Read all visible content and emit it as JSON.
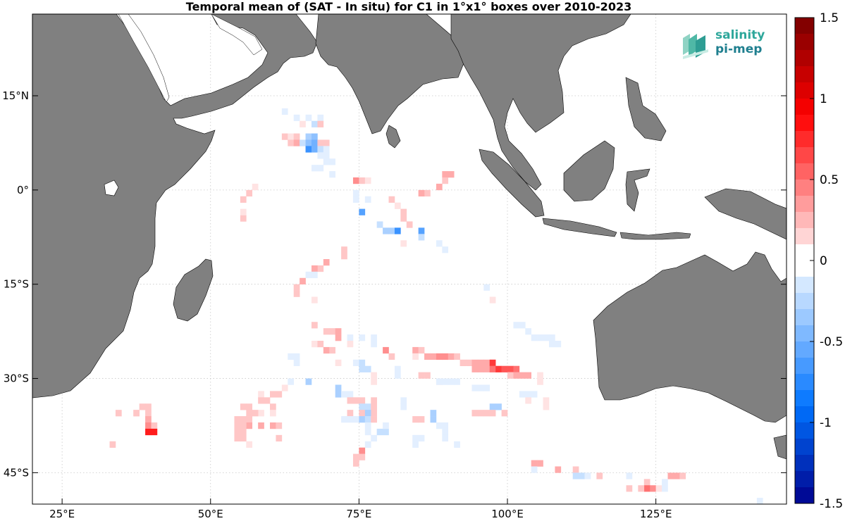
{
  "title": "Temporal mean of (SAT - In situ) for C1 in 1°x1° boxes over 2010-2023",
  "logo": {
    "line1": "salinity",
    "line2": "pi-mep",
    "icon": "salinity-waves-logo-icon"
  },
  "colors": {
    "land": "#808080",
    "grid": "#c8c8c8",
    "ocean": "#ffffff"
  },
  "chart_data": {
    "type": "heatmap",
    "title": "Temporal mean of (SAT - In situ) for C1 in 1°x1° boxes over 2010-2023",
    "x_range": [
      20,
      147
    ],
    "y_range": [
      -50,
      28
    ],
    "x_ticks": [
      25,
      50,
      75,
      100,
      125
    ],
    "x_tick_labels": [
      "25°E",
      "50°E",
      "75°E",
      "100°E",
      "125°E"
    ],
    "y_ticks": [
      15,
      0,
      -15,
      -30,
      -45
    ],
    "y_tick_labels": [
      "15°N",
      "0°",
      "15°S",
      "30°S",
      "45°S"
    ],
    "grid": true,
    "colorbar": {
      "range": [
        -1.5,
        1.5
      ],
      "step": 0.1,
      "ticks": [
        1.5,
        1,
        0.5,
        0,
        -0.5,
        -1,
        -1.5
      ],
      "tick_labels": [
        "1.5",
        "1",
        "0.5",
        "0",
        "-0.5",
        "-1",
        "-1.5"
      ]
    },
    "cells": [
      [
        62.5,
        12.5,
        -0.1
      ],
      [
        64.5,
        11.5,
        -0.1
      ],
      [
        66.5,
        11.5,
        -0.1
      ],
      [
        68.5,
        11.5,
        -0.1
      ],
      [
        65.5,
        10.5,
        0.1
      ],
      [
        67.5,
        10.5,
        -0.2
      ],
      [
        68.5,
        10.5,
        0.2
      ],
      [
        62.5,
        8.5,
        0.2
      ],
      [
        63.5,
        8.5,
        0.1
      ],
      [
        64.5,
        8.5,
        0.2
      ],
      [
        66.5,
        8.5,
        -0.3
      ],
      [
        67.5,
        8.5,
        -0.4
      ],
      [
        63.5,
        7.5,
        0.2
      ],
      [
        64.5,
        7.5,
        0.3
      ],
      [
        65.5,
        7.5,
        -0.2
      ],
      [
        66.5,
        7.5,
        -0.4
      ],
      [
        67.5,
        7.5,
        -0.5
      ],
      [
        68.5,
        7.5,
        0.2
      ],
      [
        69.5,
        7.5,
        0.2
      ],
      [
        66.5,
        6.5,
        -0.7
      ],
      [
        67.5,
        6.5,
        -0.5
      ],
      [
        68.5,
        6.5,
        -0.2
      ],
      [
        69.5,
        6.5,
        -0.1
      ],
      [
        68.5,
        5.5,
        -0.1
      ],
      [
        69.5,
        5.5,
        -0.1
      ],
      [
        69.5,
        4.5,
        -0.1
      ],
      [
        70.5,
        4.5,
        -0.1
      ],
      [
        67.5,
        3.5,
        -0.1
      ],
      [
        68.5,
        3.5,
        -0.1
      ],
      [
        70.5,
        2.5,
        -0.1
      ],
      [
        74.5,
        1.5,
        0.4
      ],
      [
        75.5,
        1.5,
        0.2
      ],
      [
        76.5,
        1.5,
        0.1
      ],
      [
        89.5,
        2.5,
        0.3
      ],
      [
        90.5,
        2.5,
        0.3
      ],
      [
        89.5,
        1.5,
        0.2
      ],
      [
        88.5,
        0.5,
        0.3
      ],
      [
        86.5,
        -0.5,
        0.2
      ],
      [
        85.5,
        -0.5,
        0.3
      ],
      [
        74.5,
        -1.5,
        -0.1
      ],
      [
        76.5,
        -1.5,
        -0.1
      ],
      [
        74.5,
        -0.5,
        -0.1
      ],
      [
        75.5,
        -3.5,
        -0.6
      ],
      [
        80.5,
        -1.5,
        0.2
      ],
      [
        81.5,
        -2.5,
        0.1
      ],
      [
        78.5,
        -5.5,
        -0.2
      ],
      [
        79.5,
        -6.5,
        -0.3
      ],
      [
        80.5,
        -6.5,
        -0.3
      ],
      [
        81.5,
        -6.5,
        -0.7
      ],
      [
        82.5,
        -3.5,
        0.2
      ],
      [
        82.5,
        -4.5,
        0.2
      ],
      [
        83.5,
        -5.5,
        0.2
      ],
      [
        82.5,
        -8.5,
        0.1
      ],
      [
        85.5,
        -6.5,
        -0.6
      ],
      [
        85.5,
        -7.5,
        -0.2
      ],
      [
        88.5,
        -8.5,
        -0.1
      ],
      [
        89.5,
        -9.5,
        -0.1
      ],
      [
        57.5,
        0.5,
        0.1
      ],
      [
        56.5,
        -0.5,
        0.2
      ],
      [
        55.5,
        -1.5,
        0.2
      ],
      [
        55.5,
        -4.5,
        0.2
      ],
      [
        55.5,
        -3.5,
        0.1
      ],
      [
        72.5,
        -9.5,
        0.2
      ],
      [
        72.5,
        -10.5,
        0.2
      ],
      [
        69.5,
        -11.5,
        0.3
      ],
      [
        68.5,
        -12.5,
        0.2
      ],
      [
        67.5,
        -12.5,
        0.3
      ],
      [
        66.5,
        -13.5,
        -0.1
      ],
      [
        67.5,
        -13.5,
        -0.1
      ],
      [
        65.5,
        -14.5,
        0.3
      ],
      [
        64.5,
        -15.5,
        0.2
      ],
      [
        64.5,
        -16.5,
        0.2
      ],
      [
        96.5,
        -15.5,
        -0.1
      ],
      [
        97.5,
        -17.5,
        0.1
      ],
      [
        67.5,
        -21.5,
        0.2
      ],
      [
        69.5,
        -22.5,
        0.2
      ],
      [
        70.5,
        -22.5,
        0.2
      ],
      [
        71.5,
        -22.5,
        0.3
      ],
      [
        71.5,
        -23.5,
        0.3
      ],
      [
        67.5,
        -24.5,
        0.1
      ],
      [
        68.5,
        -24.5,
        0.2
      ],
      [
        73.5,
        -23.5,
        -0.1
      ],
      [
        69.5,
        -25.5,
        0.3
      ],
      [
        70.5,
        -25.5,
        0.2
      ],
      [
        73.5,
        -24.5,
        0.1
      ],
      [
        75.5,
        -23.5,
        -0.1
      ],
      [
        77.5,
        -23.5,
        -0.1
      ],
      [
        77.5,
        -24.5,
        -0.1
      ],
      [
        79.5,
        -25.5,
        0.4
      ],
      [
        80.5,
        -26.5,
        0.2
      ],
      [
        63.5,
        -26.5,
        -0.1
      ],
      [
        64.5,
        -26.5,
        -0.1
      ],
      [
        64.5,
        -27.5,
        -0.1
      ],
      [
        71.5,
        -27.5,
        0.1
      ],
      [
        74.5,
        -27.5,
        -0.1
      ],
      [
        75.5,
        -27.5,
        -0.2
      ],
      [
        75.5,
        -28.5,
        -0.2
      ],
      [
        76.5,
        -28.5,
        -0.2
      ],
      [
        77.5,
        -29.5,
        0.1
      ],
      [
        77.5,
        -30.5,
        0.1
      ],
      [
        81.5,
        -28.5,
        -0.1
      ],
      [
        81.5,
        -29.5,
        -0.1
      ],
      [
        84.5,
        -25.5,
        0.3
      ],
      [
        85.5,
        -25.5,
        0.2
      ],
      [
        84.5,
        -26.5,
        0.1
      ],
      [
        86.5,
        -26.5,
        0.3
      ],
      [
        87.5,
        -26.5,
        0.3
      ],
      [
        88.5,
        -26.5,
        0.4
      ],
      [
        89.5,
        -26.5,
        0.4
      ],
      [
        90.5,
        -26.5,
        0.3
      ],
      [
        91.5,
        -26.5,
        0.2
      ],
      [
        92.5,
        -27.5,
        0.2
      ],
      [
        93.5,
        -27.5,
        0.2
      ],
      [
        94.5,
        -27.5,
        0.3
      ],
      [
        95.5,
        -27.5,
        0.3
      ],
      [
        96.5,
        -27.5,
        0.3
      ],
      [
        97.5,
        -27.5,
        0.7
      ],
      [
        94.5,
        -28.5,
        0.3
      ],
      [
        95.5,
        -28.5,
        0.3
      ],
      [
        96.5,
        -28.5,
        0.3
      ],
      [
        97.5,
        -28.5,
        0.5
      ],
      [
        98.5,
        -28.5,
        0.7
      ],
      [
        99.5,
        -28.5,
        0.6
      ],
      [
        100.5,
        -28.5,
        0.6
      ],
      [
        101.5,
        -28.5,
        0.5
      ],
      [
        100.5,
        -29.5,
        0.2
      ],
      [
        101.5,
        -29.5,
        0.3
      ],
      [
        102.5,
        -29.5,
        0.3
      ],
      [
        103.5,
        -29.5,
        0.3
      ],
      [
        105.5,
        -29.5,
        0.1
      ],
      [
        85.5,
        -29.5,
        0.2
      ],
      [
        86.5,
        -29.5,
        0.2
      ],
      [
        88.5,
        -30.5,
        0.1
      ],
      [
        88.5,
        -30.5,
        -0.1
      ],
      [
        89.5,
        -30.5,
        -0.1
      ],
      [
        90.5,
        -30.5,
        -0.1
      ],
      [
        91.5,
        -30.5,
        -0.1
      ],
      [
        94.5,
        -31.5,
        -0.1
      ],
      [
        95.5,
        -31.5,
        -0.1
      ],
      [
        96.5,
        -31.5,
        -0.1
      ],
      [
        102.5,
        -32.5,
        -0.1
      ],
      [
        103.5,
        -32.5,
        -0.1
      ],
      [
        104.5,
        -32.5,
        -0.1
      ],
      [
        105.5,
        -30.5,
        0.1
      ],
      [
        103.5,
        -33.5,
        0.1
      ],
      [
        106.5,
        -33.5,
        0.1
      ],
      [
        97.5,
        -34.5,
        -0.3
      ],
      [
        98.5,
        -34.5,
        -0.3
      ],
      [
        94.5,
        -35.5,
        0.2
      ],
      [
        95.5,
        -35.5,
        0.2
      ],
      [
        96.5,
        -35.5,
        0.2
      ],
      [
        97.5,
        -35.5,
        0.2
      ],
      [
        99.5,
        -35.5,
        0.2
      ],
      [
        106.5,
        -34.5,
        0.1
      ],
      [
        63.5,
        -30.5,
        -0.1
      ],
      [
        66.5,
        -30.5,
        -0.3
      ],
      [
        62.5,
        -31.5,
        0.1
      ],
      [
        58.5,
        -32.5,
        0.1
      ],
      [
        60.5,
        -32.5,
        0.2
      ],
      [
        61.5,
        -32.5,
        0.2
      ],
      [
        58.5,
        -33.5,
        0.2
      ],
      [
        59.5,
        -33.5,
        0.2
      ],
      [
        60.5,
        -34.5,
        0.2
      ],
      [
        58.5,
        -35.5,
        0.1
      ],
      [
        60.5,
        -35.5,
        0.1
      ],
      [
        56.5,
        -34.5,
        0.2
      ],
      [
        56.5,
        -35.5,
        0.2
      ],
      [
        57.5,
        -35.5,
        0.2
      ],
      [
        56.5,
        -36.5,
        0.2
      ],
      [
        55.5,
        -34.5,
        0.2
      ],
      [
        54.5,
        -36.5,
        0.2
      ],
      [
        55.5,
        -36.5,
        0.2
      ],
      [
        56.5,
        -37.5,
        0.3
      ],
      [
        58.5,
        -37.5,
        0.3
      ],
      [
        60.5,
        -37.5,
        0.3
      ],
      [
        61.5,
        -37.5,
        0.2
      ],
      [
        54.5,
        -37.5,
        0.2
      ],
      [
        55.5,
        -37.5,
        0.2
      ],
      [
        54.5,
        -38.5,
        0.2
      ],
      [
        55.5,
        -38.5,
        0.2
      ],
      [
        54.5,
        -39.5,
        0.2
      ],
      [
        55.5,
        -39.5,
        0.2
      ],
      [
        61.5,
        -39.5,
        0.2
      ],
      [
        56.5,
        -40.5,
        0.1
      ],
      [
        71.5,
        -31.5,
        -0.3
      ],
      [
        71.5,
        -32.5,
        -0.3
      ],
      [
        72.5,
        -32.5,
        -0.1
      ],
      [
        73.5,
        -32.5,
        -0.1
      ],
      [
        73.5,
        -33.5,
        0.2
      ],
      [
        74.5,
        -33.5,
        0.2
      ],
      [
        75.5,
        -33.5,
        0.2
      ],
      [
        77.5,
        -33.5,
        0.2
      ],
      [
        75.5,
        -34.5,
        -0.2
      ],
      [
        76.5,
        -34.5,
        -0.2
      ],
      [
        77.5,
        -34.5,
        0.2
      ],
      [
        73.5,
        -35.5,
        0.2
      ],
      [
        75.5,
        -35.5,
        0.2
      ],
      [
        77.5,
        -35.5,
        0.2
      ],
      [
        76.5,
        -35.5,
        -0.3
      ],
      [
        73.5,
        -36.5,
        -0.1
      ],
      [
        74.5,
        -36.5,
        -0.1
      ],
      [
        75.5,
        -36.5,
        -0.3
      ],
      [
        76.5,
        -36.5,
        -0.2
      ],
      [
        77.5,
        -36.5,
        0.2
      ],
      [
        72.5,
        -36.5,
        -0.1
      ],
      [
        76.5,
        -37.5,
        -0.1
      ],
      [
        76.5,
        -38.5,
        -0.1
      ],
      [
        77.5,
        -39.5,
        -0.1
      ],
      [
        78.5,
        -38.5,
        -0.2
      ],
      [
        79.5,
        -38.5,
        -0.2
      ],
      [
        79.5,
        -37.5,
        -0.1
      ],
      [
        76.5,
        -40.5,
        -0.1
      ],
      [
        75.5,
        -41.5,
        0.4
      ],
      [
        74.5,
        -42.5,
        0.2
      ],
      [
        75.5,
        -42.5,
        0.2
      ],
      [
        74.5,
        -43.5,
        0.2
      ],
      [
        37.5,
        -35.5,
        0.1
      ],
      [
        38.5,
        -34.5,
        0.2
      ],
      [
        39.5,
        -34.5,
        0.2
      ],
      [
        37.5,
        -35.5,
        0.2
      ],
      [
        39.5,
        -35.5,
        0.2
      ],
      [
        39.5,
        -36.5,
        0.3
      ],
      [
        39.5,
        -37.5,
        0.4
      ],
      [
        40.5,
        -37.5,
        0.2
      ],
      [
        39.5,
        -38.5,
        0.8
      ],
      [
        40.5,
        -38.5,
        0.8
      ],
      [
        34.5,
        -35.5,
        0.2
      ],
      [
        33.5,
        -40.5,
        0.2
      ],
      [
        82.5,
        -33.5,
        -0.1
      ],
      [
        82.5,
        -34.5,
        -0.1
      ],
      [
        84.5,
        -36.5,
        0.2
      ],
      [
        85.5,
        -36.5,
        0.2
      ],
      [
        87.5,
        -35.5,
        -0.3
      ],
      [
        87.5,
        -36.5,
        -0.3
      ],
      [
        88.5,
        -37.5,
        -0.1
      ],
      [
        89.5,
        -37.5,
        -0.1
      ],
      [
        89.5,
        -38.5,
        -0.1
      ],
      [
        89.5,
        -39.5,
        -0.1
      ],
      [
        91.5,
        -40.5,
        -0.1
      ],
      [
        84.5,
        -39.5,
        -0.1
      ],
      [
        85.5,
        -39.5,
        -0.1
      ],
      [
        84.5,
        -40.5,
        -0.1
      ],
      [
        101.5,
        -21.5,
        -0.1
      ],
      [
        102.5,
        -21.5,
        -0.1
      ],
      [
        103.5,
        -22.5,
        -0.1
      ],
      [
        104.5,
        -23.5,
        -0.1
      ],
      [
        105.5,
        -23.5,
        -0.1
      ],
      [
        106.5,
        -23.5,
        -0.1
      ],
      [
        107.5,
        -23.5,
        -0.1
      ],
      [
        107.5,
        -24.5,
        -0.1
      ],
      [
        108.5,
        -24.5,
        -0.1
      ],
      [
        104.5,
        -43.5,
        0.3
      ],
      [
        105.5,
        -43.5,
        0.3
      ],
      [
        104.5,
        -44.5,
        -0.1
      ],
      [
        108.5,
        -44.5,
        0.3
      ],
      [
        111.5,
        -44.5,
        0.2
      ],
      [
        111.5,
        -45.5,
        -0.2
      ],
      [
        112.5,
        -45.5,
        -0.2
      ],
      [
        113.5,
        -45.5,
        -0.1
      ],
      [
        115.5,
        -45.5,
        0.2
      ],
      [
        120.5,
        -45.5,
        -0.1
      ],
      [
        120.5,
        -47.5,
        0.2
      ],
      [
        123.5,
        -46.5,
        0.2
      ],
      [
        123.5,
        -47.5,
        0.5
      ],
      [
        124.5,
        -47.5,
        0.4
      ],
      [
        122.5,
        -47.5,
        0.2
      ],
      [
        125.5,
        -47.5,
        0.1
      ],
      [
        127.5,
        -45.5,
        0.3
      ],
      [
        128.5,
        -45.5,
        0.3
      ],
      [
        129.5,
        -45.5,
        0.2
      ],
      [
        126.5,
        -46.5,
        -0.1
      ],
      [
        126.5,
        -47.5,
        -0.1
      ],
      [
        142.5,
        -49.5,
        -0.1
      ],
      [
        67.5,
        -17.5,
        0.1
      ]
    ]
  }
}
